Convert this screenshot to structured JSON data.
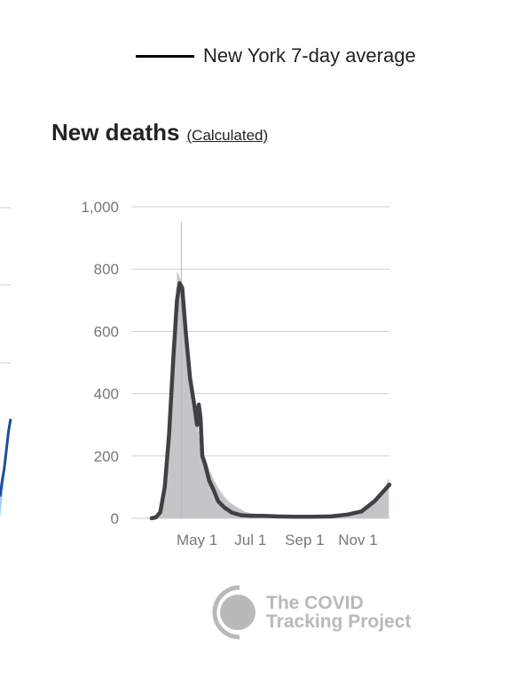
{
  "legend": {
    "label": "New York 7-day average",
    "swatch_color": "#000000"
  },
  "heading": {
    "title": "New deaths",
    "link": "(Calculated)"
  },
  "brand": {
    "line1": "The COVID",
    "line2": "Tracking Project",
    "icon": "covid-tracking-logo-icon",
    "color": "#b9b9b9"
  },
  "left_chart": {
    "fill_color": "#9fcff5",
    "line_color": "#1f4e9c",
    "series": [
      {
        "values": [
          0.32,
          0.28,
          0.22,
          0.16,
          0.12,
          0.07
        ]
      }
    ]
  },
  "chart_data": {
    "type": "bar",
    "title": "New deaths",
    "ylim": [
      0,
      1000
    ],
    "yticks": [
      0,
      200,
      400,
      600,
      800,
      1000
    ],
    "ytick_labels": [
      "0",
      "200",
      "400",
      "600",
      "800",
      "1,000"
    ],
    "xlim": [
      "2020-03-01",
      "2020-12-07"
    ],
    "xticks": [
      "2020-05-01",
      "2020-07-01",
      "2020-09-01",
      "2020-11-01"
    ],
    "xtick_labels": [
      "May 1",
      "Jul 1",
      "Sep 1",
      "Nov 1"
    ],
    "hover_date": "2020-04-13",
    "bar_color": "#c3c6c6",
    "line_color": "#3f4144",
    "grid": true,
    "series": [
      {
        "kind": "daily",
        "x": [
          "2020-03-10",
          "2020-03-15",
          "2020-03-20",
          "2020-03-25",
          "2020-03-30",
          "2020-04-04",
          "2020-04-08",
          "2020-04-12",
          "2020-04-16",
          "2020-04-20",
          "2020-04-25",
          "2020-04-30",
          "2020-05-05",
          "2020-05-10",
          "2020-05-15",
          "2020-05-20",
          "2020-05-25",
          "2020-05-31",
          "2020-06-07",
          "2020-06-15",
          "2020-06-25",
          "2020-07-05",
          "2020-07-20",
          "2020-08-05",
          "2020-08-20",
          "2020-09-05",
          "2020-09-20",
          "2020-10-05",
          "2020-10-20",
          "2020-11-01",
          "2020-11-10",
          "2020-11-20",
          "2020-11-30",
          "2020-12-05"
        ],
        "values": [
          0,
          5,
          30,
          150,
          330,
          600,
          790,
          760,
          660,
          470,
          420,
          320,
          215,
          190,
          150,
          120,
          95,
          70,
          50,
          35,
          20,
          15,
          12,
          10,
          8,
          7,
          8,
          12,
          18,
          20,
          35,
          55,
          90,
          125
        ]
      },
      {
        "name": "New York 7-day average",
        "kind": "average",
        "x": [
          "2020-03-10",
          "2020-03-15",
          "2020-03-20",
          "2020-03-25",
          "2020-03-30",
          "2020-04-04",
          "2020-04-08",
          "2020-04-11",
          "2020-04-14",
          "2020-04-18",
          "2020-04-23",
          "2020-04-28",
          "2020-05-01",
          "2020-05-02",
          "2020-05-03",
          "2020-05-05",
          "2020-05-07",
          "2020-05-10",
          "2020-05-15",
          "2020-05-20",
          "2020-05-25",
          "2020-06-01",
          "2020-06-10",
          "2020-06-20",
          "2020-07-01",
          "2020-07-15",
          "2020-08-01",
          "2020-08-20",
          "2020-09-10",
          "2020-10-01",
          "2020-10-20",
          "2020-11-05",
          "2020-11-20",
          "2020-12-07"
        ],
        "values": [
          0,
          3,
          20,
          100,
          270,
          520,
          700,
          755,
          740,
          600,
          450,
          360,
          300,
          340,
          365,
          320,
          200,
          175,
          120,
          90,
          55,
          35,
          18,
          10,
          8,
          8,
          6,
          5,
          5,
          6,
          12,
          22,
          55,
          108
        ]
      }
    ]
  }
}
